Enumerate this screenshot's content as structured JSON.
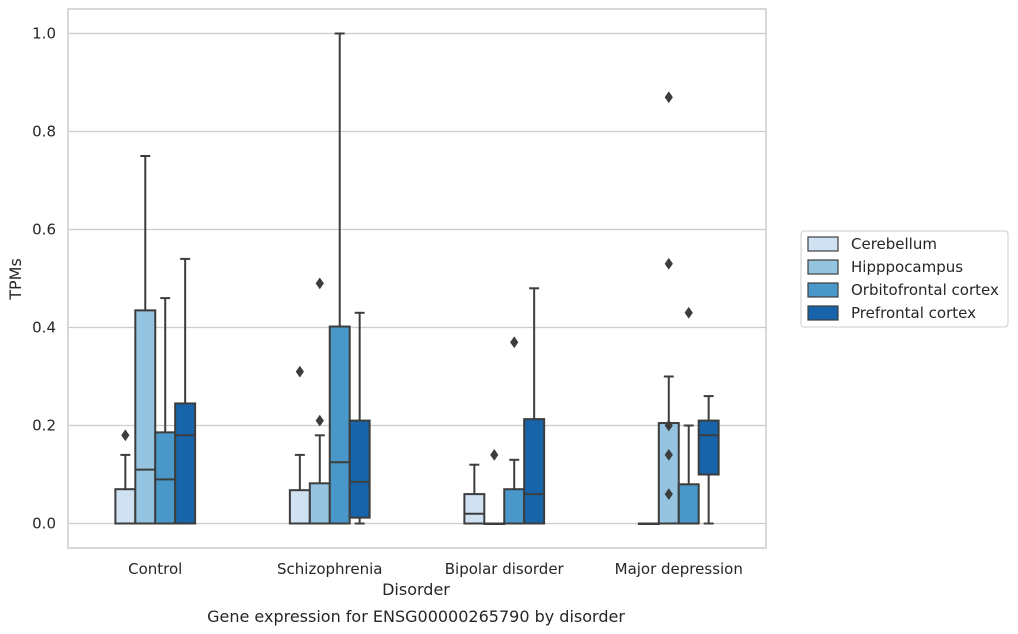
{
  "chart_data": {
    "type": "box",
    "caption": "Gene expression for ENSG00000265790 by disorder",
    "xlabel": "Disorder",
    "ylabel": "TPMs",
    "ylim": [
      -0.05,
      1.05
    ],
    "yticks": [
      "0.0",
      "0.2",
      "0.4",
      "0.6",
      "0.8",
      "1.0"
    ],
    "grid": "horizontal",
    "legend_position": "right",
    "categories": [
      "Control",
      "Schizophrenia",
      "Bipolar disorder",
      "Major depression"
    ],
    "series": [
      {
        "name": "Cerebellum",
        "color": "#d0e1f2",
        "boxes": [
          {
            "whislo": 0,
            "q1": 0,
            "med": 0,
            "q3": 0.07,
            "whishi": 0.14,
            "fliers": [
              0.18
            ]
          },
          {
            "whislo": 0,
            "q1": 0,
            "med": 0,
            "q3": 0.068,
            "whishi": 0.14,
            "fliers": [
              0.31
            ]
          },
          {
            "whislo": 0,
            "q1": 0,
            "med": 0.02,
            "q3": 0.06,
            "whishi": 0.12,
            "fliers": []
          },
          {
            "whislo": 0,
            "q1": 0,
            "med": 0,
            "q3": 0,
            "whishi": 0,
            "fliers": []
          }
        ]
      },
      {
        "name": "Hipppocampus",
        "color": "#94c4df",
        "boxes": [
          {
            "whislo": 0,
            "q1": 0,
            "med": 0.11,
            "q3": 0.435,
            "whishi": 0.75,
            "fliers": []
          },
          {
            "whislo": 0,
            "q1": 0,
            "med": 0,
            "q3": 0.082,
            "whishi": 0.18,
            "fliers": [
              0.21,
              0.49
            ]
          },
          {
            "whislo": 0,
            "q1": 0,
            "med": 0,
            "q3": 0,
            "whishi": 0,
            "fliers": [
              0.14
            ]
          },
          {
            "whislo": 0,
            "q1": 0,
            "med": 0,
            "q3": 0.205,
            "whishi": 0.3,
            "fliers": [
              0.06,
              0.14,
              0.2,
              0.53,
              0.87
            ]
          }
        ]
      },
      {
        "name": "Orbitofrontal cortex",
        "color": "#4a98c9",
        "boxes": [
          {
            "whislo": 0,
            "q1": 0,
            "med": 0.09,
            "q3": 0.186,
            "whishi": 0.46,
            "fliers": []
          },
          {
            "whislo": 0,
            "q1": 0,
            "med": 0.125,
            "q3": 0.402,
            "whishi": 1.0,
            "fliers": []
          },
          {
            "whislo": 0,
            "q1": 0,
            "med": 0,
            "q3": 0.07,
            "whishi": 0.13,
            "fliers": [
              0.37
            ]
          },
          {
            "whislo": 0,
            "q1": 0,
            "med": 0,
            "q3": 0.08,
            "whishi": 0.2,
            "fliers": [
              0.43
            ]
          }
        ]
      },
      {
        "name": "Prefrontal cortex",
        "color": "#1764ab",
        "boxes": [
          {
            "whislo": 0,
            "q1": 0,
            "med": 0.18,
            "q3": 0.245,
            "whishi": 0.54,
            "fliers": []
          },
          {
            "whislo": 0,
            "q1": 0.012,
            "med": 0.085,
            "q3": 0.21,
            "whishi": 0.43,
            "fliers": []
          },
          {
            "whislo": 0,
            "q1": 0,
            "med": 0.06,
            "q3": 0.213,
            "whishi": 0.48,
            "fliers": []
          },
          {
            "whislo": 0,
            "q1": 0.1,
            "med": 0.18,
            "q3": 0.21,
            "whishi": 0.26,
            "fliers": []
          }
        ]
      }
    ]
  }
}
